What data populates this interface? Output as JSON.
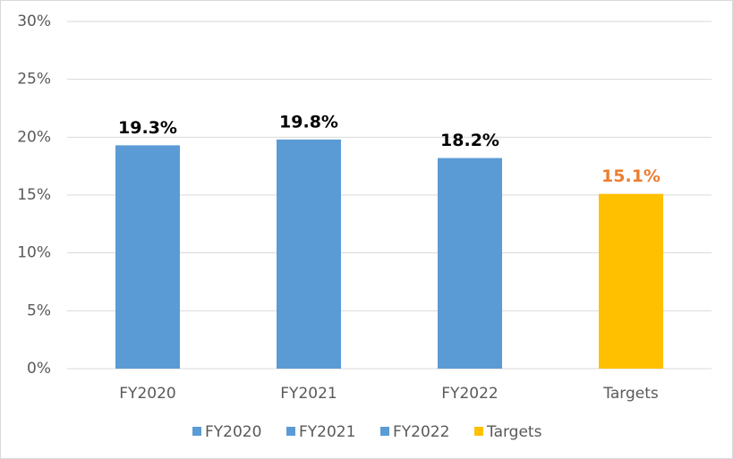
{
  "chart_data": {
    "type": "bar",
    "categories": [
      "FY2020",
      "FY2021",
      "FY2022",
      "Targets"
    ],
    "values": [
      19.3,
      19.8,
      18.2,
      15.1
    ],
    "value_labels": [
      "19.3%",
      "19.8%",
      "18.2%",
      "15.1%"
    ],
    "colors": [
      "#5b9bd5",
      "#5b9bd5",
      "#5b9bd5",
      "#ffc000"
    ],
    "label_colors": [
      "#000000",
      "#000000",
      "#000000",
      "#ed7d31"
    ],
    "ylim": [
      0,
      30
    ],
    "yticks": [
      {
        "value": 0,
        "label": "0%"
      },
      {
        "value": 5,
        "label": "5%"
      },
      {
        "value": 10,
        "label": "10%"
      },
      {
        "value": 15,
        "label": "15%"
      },
      {
        "value": 20,
        "label": "20%"
      },
      {
        "value": 25,
        "label": "25%"
      },
      {
        "value": 30,
        "label": "30%"
      }
    ],
    "grid": true,
    "legend": "bottom"
  }
}
